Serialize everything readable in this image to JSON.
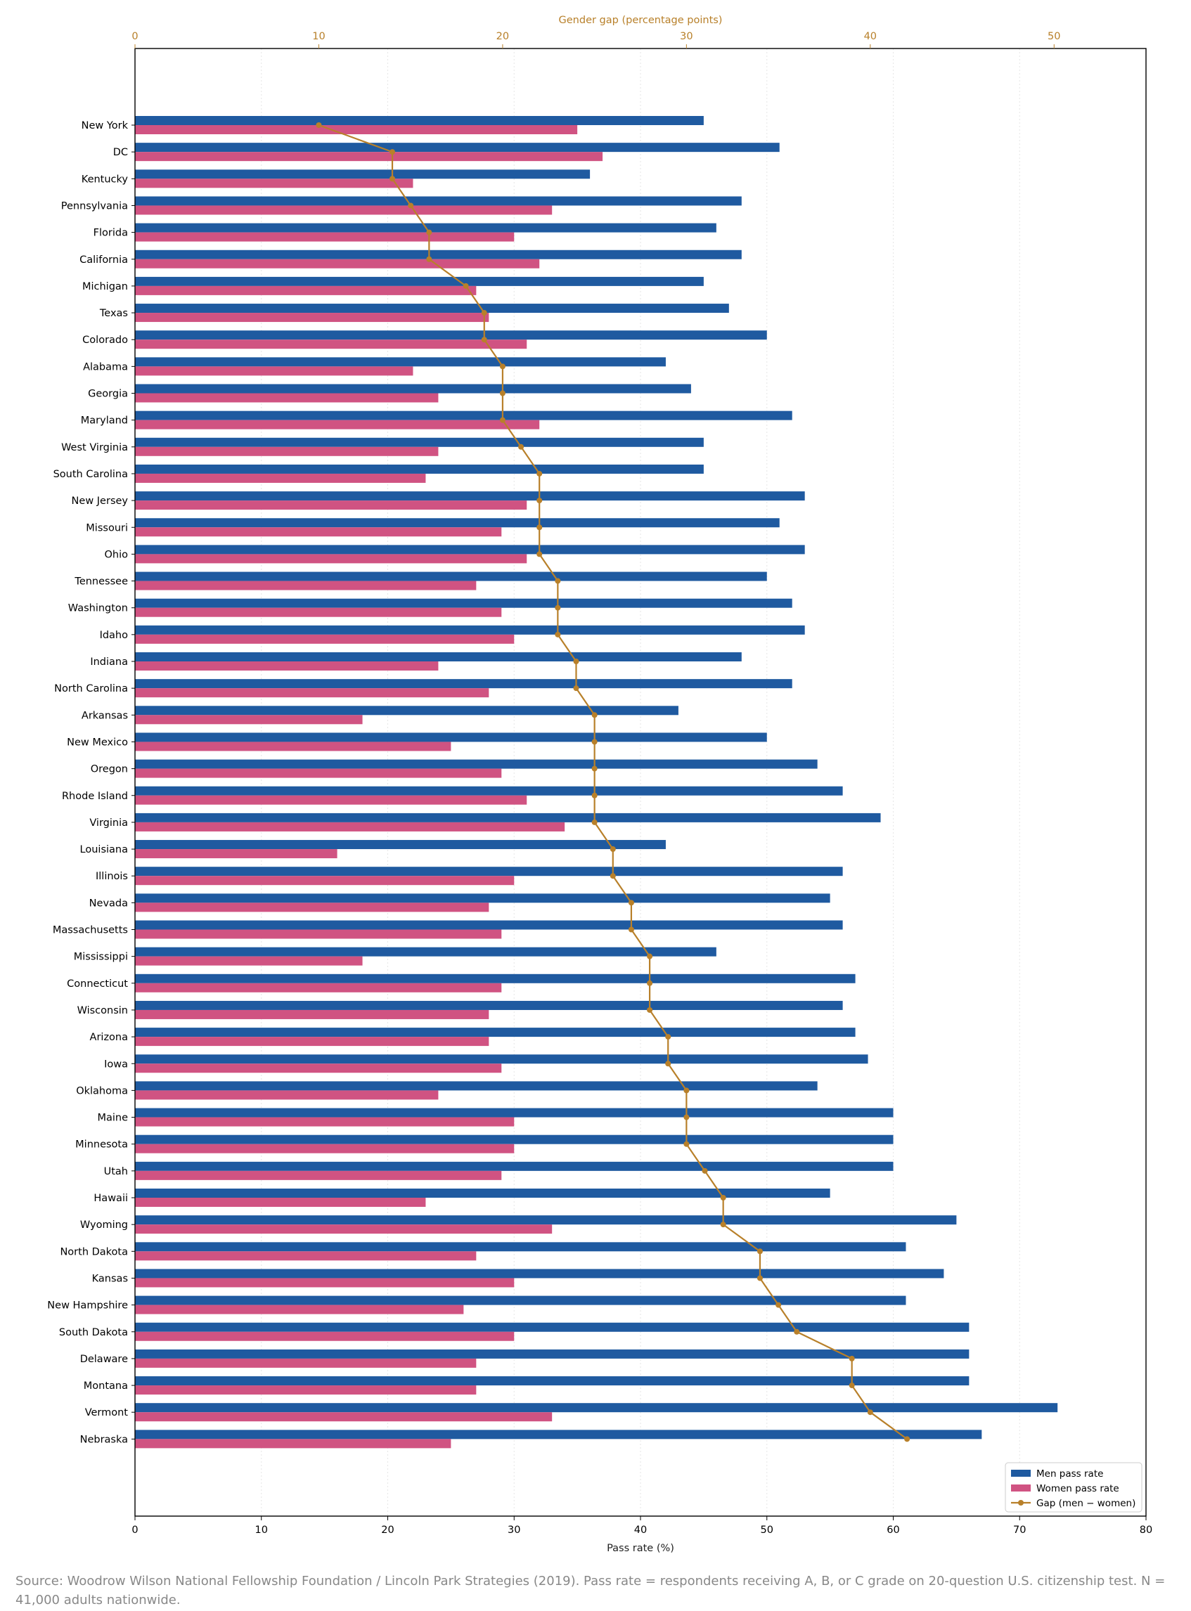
{
  "chart_data": {
    "type": "bar",
    "orientation": "horizontal",
    "title": "",
    "xlabel": "Pass rate (%)",
    "x2label": "Gender gap (percentage points)",
    "xlim": [
      0,
      80
    ],
    "x2lim": [
      0,
      55
    ],
    "xticks": [
      0,
      10,
      20,
      30,
      40,
      50,
      60,
      70,
      80
    ],
    "x2ticks": [
      0,
      10,
      20,
      30,
      40,
      50
    ],
    "grid": true,
    "legend_position": "lower right",
    "categories": [
      "New York",
      "DC",
      "Kentucky",
      "Pennsylvania",
      "Florida",
      "California",
      "Michigan",
      "Texas",
      "Colorado",
      "Alabama",
      "Georgia",
      "Maryland",
      "West Virginia",
      "South Carolina",
      "New Jersey",
      "Missouri",
      "Ohio",
      "Tennessee",
      "Washington",
      "Idaho",
      "Indiana",
      "North Carolina",
      "Arkansas",
      "New Mexico",
      "Oregon",
      "Rhode Island",
      "Virginia",
      "Louisiana",
      "Illinois",
      "Nevada",
      "Massachusetts",
      "Mississippi",
      "Connecticut",
      "Wisconsin",
      "Arizona",
      "Iowa",
      "Oklahoma",
      "Maine",
      "Minnesota",
      "Utah",
      "Hawaii",
      "Wyoming",
      "North Dakota",
      "Kansas",
      "New Hampshire",
      "South Dakota",
      "Delaware",
      "Montana",
      "Vermont",
      "Nebraska"
    ],
    "series": [
      {
        "name": "Men pass rate",
        "kind": "bar",
        "axis": "bottom",
        "color": "#1f5aa0",
        "values": [
          45,
          51,
          36,
          48,
          46,
          48,
          45,
          47,
          50,
          42,
          44,
          52,
          45,
          45,
          53,
          51,
          53,
          50,
          52,
          53,
          48,
          52,
          43,
          50,
          54,
          56,
          59,
          42,
          56,
          55,
          56,
          46,
          57,
          56,
          57,
          58,
          54,
          60,
          60,
          60,
          55,
          65,
          61,
          64,
          61,
          66,
          66,
          66,
          73,
          67
        ]
      },
      {
        "name": "Women pass rate",
        "kind": "bar",
        "axis": "bottom",
        "color": "#d05382",
        "values": [
          35,
          37,
          22,
          33,
          30,
          32,
          27,
          28,
          31,
          22,
          24,
          32,
          24,
          23,
          31,
          29,
          31,
          27,
          29,
          30,
          24,
          28,
          18,
          25,
          29,
          31,
          34,
          16,
          30,
          28,
          29,
          18,
          29,
          28,
          28,
          29,
          24,
          30,
          30,
          29,
          23,
          33,
          27,
          30,
          26,
          30,
          27,
          27,
          33,
          25
        ]
      },
      {
        "name": "Gap (men − women)",
        "kind": "line",
        "axis": "top",
        "color": "#b8802a",
        "values": [
          10,
          14,
          14,
          15,
          16,
          16,
          18,
          19,
          19,
          20,
          20,
          20,
          21,
          22,
          22,
          22,
          22,
          23,
          23,
          23,
          24,
          24,
          25,
          25,
          25,
          25,
          25,
          26,
          26,
          27,
          27,
          28,
          28,
          28,
          29,
          29,
          30,
          30,
          30,
          31,
          32,
          32,
          34,
          34,
          35,
          36,
          39,
          39,
          40,
          42
        ]
      }
    ]
  },
  "source_note": "Source: Woodrow Wilson National Fellowship Foundation / Lincoln Park Strategies (2019). Pass rate = respondents receiving A, B, or C grade on 20-question U.S. citizenship test. N = 41,000 adults nationwide."
}
